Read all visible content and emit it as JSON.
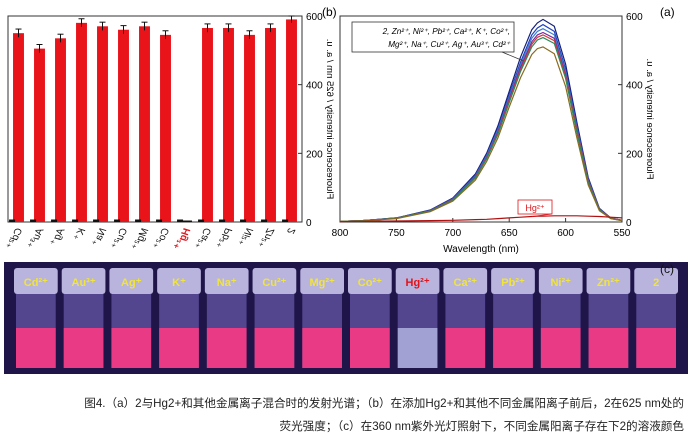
{
  "panel_labels": {
    "a": "(a)",
    "b": "(b)",
    "c": "(c)"
  },
  "colors": {
    "bar": "#e8141a",
    "hg_label": "#e0141a",
    "gold_label": "#f1e43a",
    "vial_liquid": "#f03a85",
    "photo_bg": "#1f1548"
  },
  "chart_data": [
    {
      "type": "bar",
      "categories": [
        "Cd²⁺",
        "Au³⁺",
        "Ag⁺",
        "K⁺",
        "Na⁺",
        "Cu²⁺",
        "Mg²⁺",
        "Co²⁺",
        "Hg²⁺",
        "Ca²⁺",
        "Pb²⁺",
        "Ni²⁺",
        "Zn²⁺",
        "2"
      ],
      "values": [
        550,
        505,
        535,
        580,
        570,
        560,
        570,
        545,
        0,
        565,
        565,
        545,
        565,
        590
      ],
      "errors": [
        12,
        12,
        12,
        12,
        12,
        12,
        12,
        12,
        0,
        12,
        12,
        12,
        12,
        10
      ],
      "highlight_category": "Hg²⁺",
      "ylabel": "Fluorescence intensity / 625 nm / a. u.",
      "ylim": [
        0,
        600
      ],
      "yticks": [
        0,
        200,
        400,
        600
      ],
      "axis_position": "right"
    },
    {
      "type": "line",
      "xlabel": "Wavelength (nm)",
      "ylabel": "Fluorescence intensity / a. u.",
      "xlim": [
        550,
        800
      ],
      "xticks": [
        550,
        600,
        650,
        700,
        750,
        800
      ],
      "ylim": [
        0,
        600
      ],
      "yticks": [
        0,
        200,
        400,
        600
      ],
      "axis_position": "right",
      "x_reversed": true,
      "legend_group": {
        "line1": "2, Zn²⁺, Ni²⁺, Pb²⁺, Ca²⁺, K⁺, Co²⁺,",
        "line2": "Mg²⁺, Na⁺, Cu²⁺, Ag⁺, Au³⁺, Cd²⁺",
        "placement": "top-center"
      },
      "hg_label": "Hg²⁺",
      "x": [
        550,
        560,
        570,
        580,
        590,
        600,
        610,
        620,
        625,
        630,
        640,
        650,
        660,
        670,
        680,
        700,
        720,
        750,
        780,
        800
      ],
      "series": [
        {
          "color": "#14207a",
          "values": [
            5,
            12,
            40,
            130,
            290,
            460,
            570,
            590,
            580,
            560,
            480,
            380,
            280,
            200,
            140,
            70,
            35,
            12,
            4,
            2
          ]
        },
        {
          "color": "#1f3fc2",
          "values": [
            5,
            12,
            38,
            125,
            280,
            445,
            555,
            575,
            565,
            545,
            465,
            370,
            272,
            195,
            136,
            68,
            34,
            12,
            4,
            2
          ]
        },
        {
          "color": "#3a7fd0",
          "values": [
            5,
            11,
            37,
            122,
            275,
            438,
            545,
            563,
            555,
            535,
            458,
            364,
            268,
            192,
            134,
            67,
            33,
            11,
            4,
            2
          ]
        },
        {
          "color": "#7a2a9a",
          "values": [
            5,
            11,
            36,
            120,
            270,
            430,
            535,
            552,
            545,
            525,
            450,
            358,
            262,
            188,
            132,
            66,
            33,
            11,
            4,
            2
          ]
        },
        {
          "color": "#d23a3a",
          "values": [
            5,
            11,
            36,
            118,
            266,
            425,
            528,
            545,
            538,
            518,
            444,
            353,
            258,
            186,
            130,
            65,
            32,
            11,
            4,
            2
          ]
        },
        {
          "color": "#2a8a5a",
          "values": [
            4,
            10,
            35,
            115,
            260,
            418,
            520,
            537,
            530,
            510,
            438,
            348,
            255,
            184,
            128,
            64,
            32,
            11,
            4,
            2
          ]
        },
        {
          "color": "#8a6a20",
          "values": [
            4,
            10,
            33,
            108,
            245,
            395,
            490,
            510,
            505,
            488,
            420,
            335,
            245,
            176,
            122,
            61,
            30,
            10,
            3,
            2
          ]
        },
        {
          "color": "#b01010",
          "values": [
            12,
            14,
            16,
            17,
            18,
            18,
            18,
            17,
            17,
            16,
            14,
            12,
            10,
            8,
            7,
            5,
            4,
            3,
            2,
            1
          ]
        }
      ]
    }
  ],
  "photo_labels": [
    "Cd²⁺",
    "Au³⁺",
    "Ag⁺",
    "K⁺",
    "Na⁺",
    "Cu²⁺",
    "Mg²⁺",
    "Co²⁺",
    "Hg²⁺",
    "Ca²⁺",
    "Pb²⁺",
    "Ni²⁺",
    "Zn²⁺",
    "2"
  ],
  "caption": {
    "line1": "图4.（a）2与Hg2+和其他金属离子混合时的发射光谱；（b）在添加Hg2+和其他不同金属阳离子前后，2在625 nm处的",
    "line2": "荧光强度；（c）在360 nm紫外光灯照射下，不同金属阳离子存在下2的溶液颜色"
  }
}
